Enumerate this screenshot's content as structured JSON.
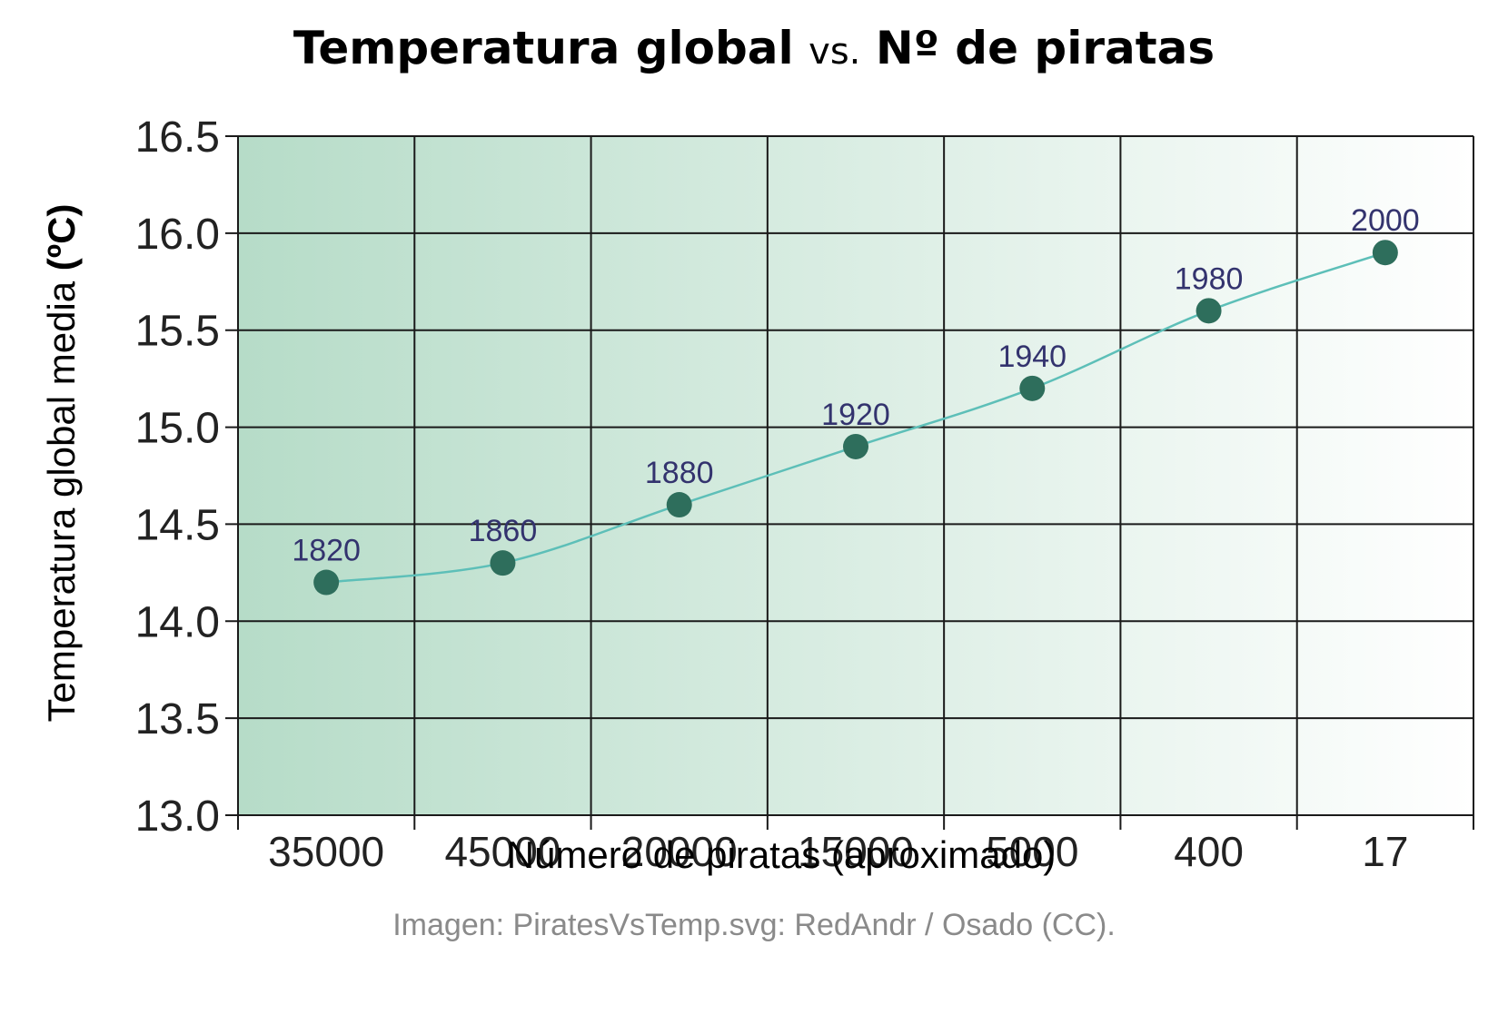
{
  "title": {
    "part1": "Temperatura global",
    "vs": "vs.",
    "part2": "Nº de piratas"
  },
  "credit": "Imagen: PiratesVsTemp.svg: RedAndr / Osado (CC).",
  "colors": {
    "point": "#2e6e5c",
    "line": "#5dbfb8",
    "label": "#33336e",
    "grid": "#1a1a1a",
    "bg_left": "#b6dcc8",
    "bg_right": "#ffffff",
    "credit": "#8a8a8a"
  },
  "chart_data": {
    "type": "line",
    "title": "Temperatura global vs. Nº de piratas",
    "xlabel": "Número de piratas (aproximado)",
    "ylabel_prefix": "Temperatura global media ",
    "ylabel_unit": "(ºC)",
    "categories": [
      "35000",
      "45000",
      "20000",
      "15000",
      "5000",
      "400",
      "17"
    ],
    "values": [
      14.2,
      14.3,
      14.6,
      14.9,
      15.2,
      15.6,
      15.9
    ],
    "point_labels": [
      "1820",
      "1860",
      "1880",
      "1920",
      "1940",
      "1980",
      "2000"
    ],
    "ylim": [
      13.0,
      16.5
    ],
    "yticks": [
      "13.0",
      "13.5",
      "14.0",
      "14.5",
      "15.0",
      "15.5",
      "16.0",
      "16.5"
    ],
    "grid": true,
    "legend": false
  }
}
